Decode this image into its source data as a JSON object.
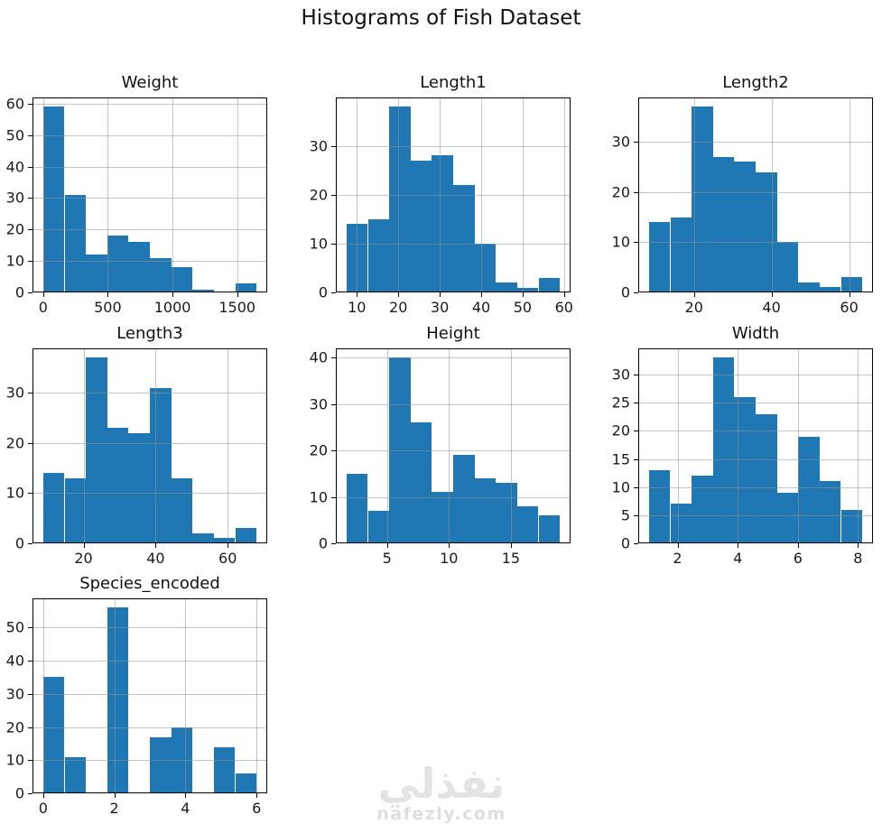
{
  "figure": {
    "title": "Histograms of Fish Dataset",
    "background": "#ffffff",
    "bar_color": "#1f77b4",
    "grid_color": "#b0b0b0",
    "axis_color": "#000000",
    "text_color": "#1a1a1a"
  },
  "watermark": {
    "arabic": "نفذلي",
    "domain": "nafezly.com",
    "color": "#e3e3e3"
  },
  "chart_data": [
    {
      "type": "bar",
      "title": "Weight",
      "row": 0,
      "col": 0,
      "bin_start": 0,
      "bin_width": 165,
      "values": [
        59,
        31,
        12,
        18,
        16,
        11,
        8,
        1,
        0,
        3
      ],
      "xlim": [
        -82.5,
        1732.5
      ],
      "ylim": [
        0,
        61.95
      ],
      "xticks": [
        0,
        500,
        1000,
        1500
      ],
      "yticks": [
        0,
        10,
        20,
        30,
        40,
        50,
        60
      ],
      "grid": true
    },
    {
      "type": "bar",
      "title": "Length1",
      "row": 0,
      "col": 1,
      "bin_start": 7.5,
      "bin_width": 5.15,
      "values": [
        14,
        15,
        38,
        27,
        28,
        22,
        10,
        2,
        1,
        3
      ],
      "xlim": [
        4.925,
        61.575
      ],
      "ylim": [
        0,
        39.9
      ],
      "xticks": [
        10,
        20,
        30,
        40,
        50,
        60
      ],
      "yticks": [
        0,
        10,
        20,
        30
      ],
      "grid": true
    },
    {
      "type": "bar",
      "title": "Length2",
      "row": 0,
      "col": 2,
      "bin_start": 8.4,
      "bin_width": 5.5,
      "values": [
        14,
        15,
        37,
        27,
        26,
        24,
        10,
        2,
        1,
        3
      ],
      "xlim": [
        5.65,
        66.15
      ],
      "ylim": [
        0,
        38.85
      ],
      "xticks": [
        20,
        40,
        60
      ],
      "yticks": [
        0,
        10,
        20,
        30
      ],
      "grid": true
    },
    {
      "type": "bar",
      "title": "Length3",
      "row": 1,
      "col": 0,
      "bin_start": 8.8,
      "bin_width": 5.92,
      "values": [
        14,
        13,
        37,
        23,
        22,
        31,
        13,
        2,
        1,
        3
      ],
      "xlim": [
        5.84,
        70.96
      ],
      "ylim": [
        0,
        38.85
      ],
      "xticks": [
        20,
        40,
        60
      ],
      "yticks": [
        0,
        10,
        20,
        30
      ],
      "grid": true
    },
    {
      "type": "bar",
      "title": "Height",
      "row": 1,
      "col": 1,
      "bin_start": 1.73,
      "bin_width": 1.7229,
      "values": [
        15,
        7,
        40,
        26,
        11,
        19,
        14,
        13,
        8,
        6
      ],
      "xlim": [
        0.867,
        19.818
      ],
      "ylim": [
        0,
        42
      ],
      "xticks": [
        5,
        10,
        15
      ],
      "yticks": [
        0,
        10,
        20,
        30,
        40
      ],
      "grid": true
    },
    {
      "type": "bar",
      "title": "Width",
      "row": 1,
      "col": 2,
      "bin_start": 1.048,
      "bin_width": 0.7094,
      "values": [
        13,
        7,
        12,
        33,
        26,
        23,
        9,
        19,
        11,
        6
      ],
      "xlim": [
        0.693,
        8.497
      ],
      "ylim": [
        0,
        34.65
      ],
      "xticks": [
        2,
        4,
        6,
        8
      ],
      "yticks": [
        0,
        5,
        10,
        15,
        20,
        25,
        30
      ],
      "grid": true
    },
    {
      "type": "bar",
      "title": "Species_encoded",
      "row": 2,
      "col": 0,
      "bin_start": 0,
      "bin_width": 0.6,
      "values": [
        35,
        11,
        0,
        56,
        0,
        17,
        20,
        0,
        14,
        6
      ],
      "xlim": [
        -0.3,
        6.3
      ],
      "ylim": [
        0,
        58.8
      ],
      "xticks": [
        0,
        2,
        4,
        6
      ],
      "yticks": [
        0,
        10,
        20,
        30,
        40,
        50
      ],
      "grid": true
    }
  ]
}
